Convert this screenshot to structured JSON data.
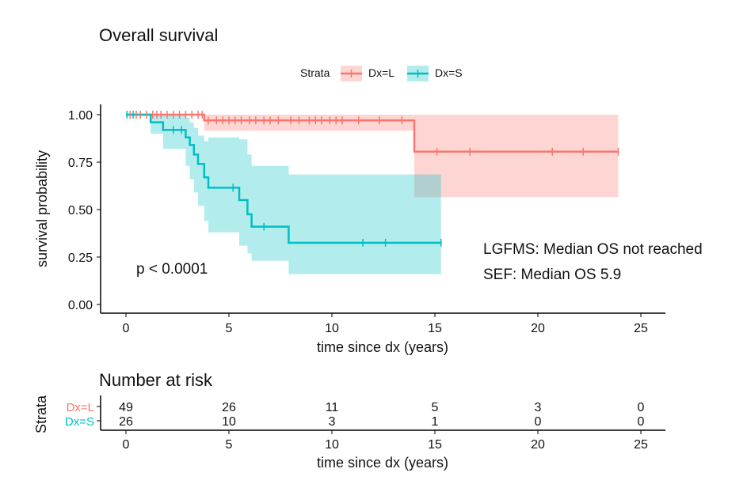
{
  "chart_data": {
    "type": "survival",
    "title": "Overall survival",
    "legend": {
      "title": "Strata",
      "placement": "top",
      "entries": [
        "Dx=L",
        "Dx=S"
      ]
    },
    "xlabel": "time since dx (years)",
    "ylabel": "survival probability",
    "xlim": [
      0,
      25
    ],
    "ylim": [
      0,
      1
    ],
    "x_ticks": [
      "0",
      "5",
      "10",
      "15",
      "20",
      "25"
    ],
    "y_ticks": [
      "0.00",
      "0.25",
      "0.50",
      "0.75",
      "1.00"
    ],
    "x_tick_values": [
      0,
      5,
      10,
      15,
      20,
      25
    ],
    "y_tick_values": [
      0,
      0.25,
      0.5,
      0.75,
      1
    ],
    "pvalue_text": "p < 0.0001",
    "annotations": [
      "LGFMS: Median OS not reached",
      "SEF: Median OS 5.9"
    ],
    "colors": {
      "Dx=L": "#f8766d",
      "Dx=S": "#00bfc4"
    },
    "series": [
      {
        "name": "Dx=L",
        "step_x": [
          0,
          3.8,
          14.0,
          23.9
        ],
        "step_y": [
          1.0,
          0.97,
          0.805,
          0.805
        ],
        "ci_x": [
          0,
          3.8,
          14.0,
          23.9
        ],
        "ci_lower": [
          1.0,
          0.915,
          0.565,
          0.565
        ],
        "ci_upper": [
          1.0,
          1.0,
          1.0,
          1.0
        ],
        "censor_x": [
          0.2,
          0.5,
          0.7,
          1.0,
          1.3,
          1.5,
          1.7,
          2.0,
          2.3,
          2.6,
          2.9,
          3.2,
          3.5,
          3.7,
          4.0,
          4.4,
          4.7,
          5.0,
          5.3,
          5.6,
          6.0,
          6.3,
          6.7,
          7.0,
          7.4,
          8.0,
          8.4,
          8.9,
          9.2,
          9.5,
          9.9,
          10.2,
          10.5,
          11.3,
          12.3,
          13.4,
          15.1,
          16.7,
          20.7,
          22.2,
          23.9
        ],
        "censor_y": [
          1.0,
          1.0,
          1.0,
          1.0,
          1.0,
          1.0,
          1.0,
          1.0,
          1.0,
          1.0,
          1.0,
          1.0,
          1.0,
          1.0,
          0.97,
          0.97,
          0.97,
          0.97,
          0.97,
          0.97,
          0.97,
          0.97,
          0.97,
          0.97,
          0.97,
          0.97,
          0.97,
          0.97,
          0.97,
          0.97,
          0.97,
          0.97,
          0.97,
          0.97,
          0.97,
          0.97,
          0.805,
          0.805,
          0.805,
          0.805,
          0.805
        ]
      },
      {
        "name": "Dx=S",
        "step_x": [
          0,
          1.2,
          1.8,
          2.9,
          3.1,
          3.3,
          3.5,
          3.8,
          4.0,
          5.5,
          5.9,
          6.1,
          7.9,
          15.3
        ],
        "step_y": [
          1.0,
          0.96,
          0.92,
          0.88,
          0.84,
          0.79,
          0.74,
          0.67,
          0.615,
          0.55,
          0.475,
          0.41,
          0.325,
          0.325
        ],
        "ci_x": [
          0,
          1.2,
          1.8,
          2.9,
          3.1,
          3.3,
          3.5,
          3.8,
          4.0,
          5.5,
          5.9,
          6.1,
          7.9,
          15.3
        ],
        "ci_lower": [
          1.0,
          0.9,
          0.82,
          0.73,
          0.66,
          0.59,
          0.52,
          0.44,
          0.38,
          0.31,
          0.27,
          0.23,
          0.16,
          0.16
        ],
        "ci_upper": [
          1.0,
          1.0,
          1.0,
          0.985,
          0.96,
          0.93,
          0.89,
          0.86,
          0.88,
          0.87,
          0.79,
          0.73,
          0.685,
          0.685
        ],
        "censor_x": [
          0.05,
          0.35,
          2.3,
          2.7,
          5.2,
          6.7,
          11.5,
          12.6,
          15.3
        ],
        "censor_y": [
          1.0,
          1.0,
          0.92,
          0.92,
          0.615,
          0.41,
          0.325,
          0.325,
          0.325
        ]
      }
    ],
    "risk_table": {
      "title": "Number at risk",
      "ylabel": "Strata",
      "xlabel": "time since dx (years)",
      "times": [
        "0",
        "5",
        "10",
        "15",
        "20",
        "25"
      ],
      "rows": [
        {
          "label": "Dx=L",
          "counts": [
            "49",
            "26",
            "11",
            "5",
            "3",
            "0"
          ]
        },
        {
          "label": "Dx=S",
          "counts": [
            "26",
            "10",
            "3",
            "1",
            "0",
            "0"
          ]
        }
      ]
    }
  }
}
